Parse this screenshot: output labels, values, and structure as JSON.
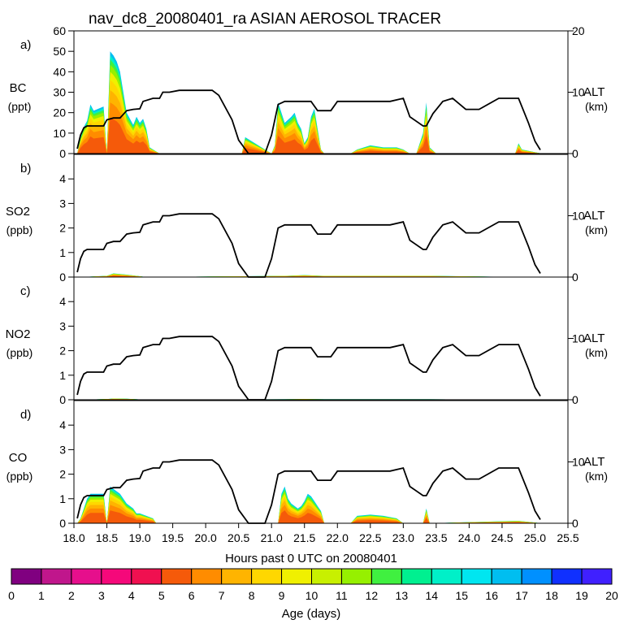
{
  "title": "nav_dc8_20080401_ra ASIAN AEROSOL TRACER",
  "xlabel": "Hours past 0 UTC on 20080401",
  "x_ticks": [
    "18.0",
    "18.5",
    "19.0",
    "19.5",
    "20.0",
    "20.5",
    "21.0",
    "21.5",
    "22.0",
    "22.5",
    "23.0",
    "23.5",
    "24.0",
    "24.5",
    "25.0",
    "25.5"
  ],
  "x_range": [
    18.0,
    25.5
  ],
  "alt_axis": {
    "label": "ALT",
    "unit": "(km)",
    "ticks": [
      "0",
      "10",
      "20"
    ],
    "range": [
      0,
      20
    ]
  },
  "panels": [
    {
      "letter": "a)",
      "name": "BC",
      "unit": "(ppt)",
      "y_ticks": [
        "0",
        "10",
        "20",
        "30",
        "40",
        "50",
        "60"
      ],
      "y_range": [
        0,
        60
      ],
      "alt_ticks": [
        "0",
        "10",
        "20"
      ]
    },
    {
      "letter": "b)",
      "name": "SO2",
      "unit": "(ppb)",
      "y_ticks": [
        "0",
        "1",
        "2",
        "3",
        "4"
      ],
      "y_range": [
        0,
        5
      ],
      "alt_ticks": [
        "0",
        "10"
      ]
    },
    {
      "letter": "c)",
      "name": "NO2",
      "unit": "(ppb)",
      "y_ticks": [
        "0",
        "1",
        "2",
        "3",
        "4"
      ],
      "y_range": [
        0,
        5
      ],
      "alt_ticks": [
        "0",
        "10"
      ]
    },
    {
      "letter": "d)",
      "name": "CO",
      "unit": "(ppb)",
      "y_ticks": [
        "0",
        "1",
        "2",
        "3",
        "4"
      ],
      "y_range": [
        0,
        5
      ],
      "alt_ticks": [
        "0",
        "10"
      ]
    }
  ],
  "colorbar": {
    "label": "Age (days)",
    "ticks": [
      "0",
      "1",
      "2",
      "3",
      "4",
      "5",
      "6",
      "7",
      "8",
      "9",
      "10",
      "11",
      "12",
      "13",
      "14",
      "15",
      "16",
      "17",
      "18",
      "19",
      "20"
    ],
    "colors": [
      "#800080",
      "#c0168c",
      "#e60f8c",
      "#f5087a",
      "#f01050",
      "#f55a0a",
      "#ff8c00",
      "#ffb400",
      "#ffd700",
      "#f0f000",
      "#c8f000",
      "#96f000",
      "#40f040",
      "#00f090",
      "#00f0c8",
      "#00e6f0",
      "#00bef0",
      "#0090ff",
      "#1030ff",
      "#4020ff"
    ]
  },
  "chart_data": {
    "type": "area",
    "x_field": "hours_past_0UTC",
    "altitude_km": {
      "x": [
        18.05,
        18.1,
        18.15,
        18.2,
        18.3,
        18.45,
        18.5,
        18.6,
        18.7,
        18.8,
        18.9,
        19.0,
        19.05,
        19.2,
        19.3,
        19.35,
        19.45,
        19.6,
        19.8,
        19.95,
        20.1,
        20.2,
        20.4,
        20.5,
        20.65,
        20.75,
        20.9,
        21.0,
        21.1,
        21.2,
        21.6,
        21.7,
        21.9,
        22.0,
        22.8,
        23.0,
        23.1,
        23.3,
        23.35,
        23.45,
        23.6,
        23.75,
        23.95,
        24.15,
        24.45,
        24.75,
        24.9,
        25.0,
        25.08
      ],
      "y": [
        0.8,
        3.0,
        4.2,
        4.5,
        4.5,
        4.5,
        5.5,
        5.8,
        5.8,
        7.0,
        7.2,
        7.3,
        8.5,
        9.0,
        9.0,
        10.0,
        10.0,
        10.3,
        10.3,
        10.3,
        10.3,
        9.5,
        5.5,
        2.2,
        0,
        0,
        0,
        3.0,
        8.0,
        8.5,
        8.5,
        7.0,
        7.0,
        8.5,
        8.5,
        9.0,
        6.0,
        4.5,
        4.5,
        6.5,
        8.5,
        9.0,
        7.2,
        7.2,
        9.0,
        9.0,
        5.0,
        2.0,
        0.6
      ]
    },
    "series": [
      {
        "name": "BC",
        "unit": "ppt",
        "x": [
          18.05,
          18.1,
          18.15,
          18.2,
          18.25,
          18.3,
          18.45,
          18.5,
          18.55,
          18.6,
          18.65,
          18.7,
          18.75,
          18.8,
          18.9,
          18.95,
          19.0,
          19.05,
          19.1,
          19.15,
          19.2,
          19.3,
          20.55,
          20.6,
          21.0,
          21.05,
          21.1,
          21.15,
          21.2,
          21.3,
          21.35,
          21.4,
          21.45,
          21.5,
          21.55,
          21.6,
          21.65,
          21.7,
          21.75,
          21.8,
          22.2,
          22.3,
          22.5,
          22.7,
          22.9,
          23.0,
          23.1,
          23.2,
          23.3,
          23.35,
          23.4,
          23.5,
          24.7,
          24.75,
          24.8,
          25.1
        ],
        "values": [
          0,
          8,
          13,
          16,
          24,
          21,
          23,
          0,
          50,
          48,
          45,
          40,
          30,
          20,
          14,
          18,
          15,
          17,
          12,
          3,
          2,
          0,
          0,
          8,
          0,
          4,
          25,
          20,
          15,
          18,
          20,
          15,
          12,
          5,
          8,
          18,
          22,
          12,
          2,
          0,
          0,
          2,
          4,
          3,
          3,
          2,
          0,
          0,
          10,
          25,
          3,
          0,
          0,
          5,
          2,
          0
        ]
      },
      {
        "name": "SO2",
        "unit": "ppb",
        "x": [
          18.1,
          18.5,
          18.6,
          18.8,
          19.1,
          21.2,
          21.5,
          21.8,
          22.8,
          23.4,
          24.8,
          25.1
        ],
        "values": [
          0,
          0.05,
          0.15,
          0.1,
          0,
          0.05,
          0.08,
          0.05,
          0.05,
          0.05,
          0,
          0
        ]
      },
      {
        "name": "NO2",
        "unit": "ppb",
        "x": [
          18.1,
          18.5,
          18.6,
          18.8,
          19.1,
          21.2,
          21.5,
          21.8,
          22.8,
          23.4,
          24.8,
          25.1
        ],
        "values": [
          0,
          0.03,
          0.05,
          0.04,
          0,
          0.02,
          0.03,
          0.02,
          0.02,
          0.02,
          0,
          0
        ]
      },
      {
        "name": "CO",
        "unit": "ppb",
        "x": [
          18.05,
          18.1,
          18.15,
          18.2,
          18.25,
          18.45,
          18.5,
          18.55,
          18.6,
          18.7,
          18.8,
          18.9,
          18.95,
          19.0,
          19.1,
          19.2,
          19.25,
          21.1,
          21.15,
          21.2,
          21.25,
          21.3,
          21.4,
          21.45,
          21.5,
          21.55,
          21.6,
          21.65,
          21.7,
          21.75,
          21.8,
          22.2,
          22.3,
          22.5,
          22.7,
          22.9,
          23.0,
          23.3,
          23.35,
          23.4,
          24.75,
          25.1
        ],
        "values": [
          0,
          0.2,
          0.6,
          1.0,
          1.2,
          1.2,
          0,
          1.5,
          1.4,
          1.2,
          0.8,
          0.6,
          0.4,
          0.4,
          0.3,
          0.2,
          0,
          0,
          1.2,
          1.5,
          1.0,
          0.8,
          0.6,
          0.7,
          0.9,
          1.2,
          1.1,
          0.9,
          0.7,
          0.5,
          0,
          0,
          0.3,
          0.35,
          0.3,
          0.2,
          0,
          0,
          0.6,
          0,
          0.1,
          0
        ]
      }
    ],
    "legend": "colorbar below (age in days, 0-20)",
    "grid": false
  }
}
